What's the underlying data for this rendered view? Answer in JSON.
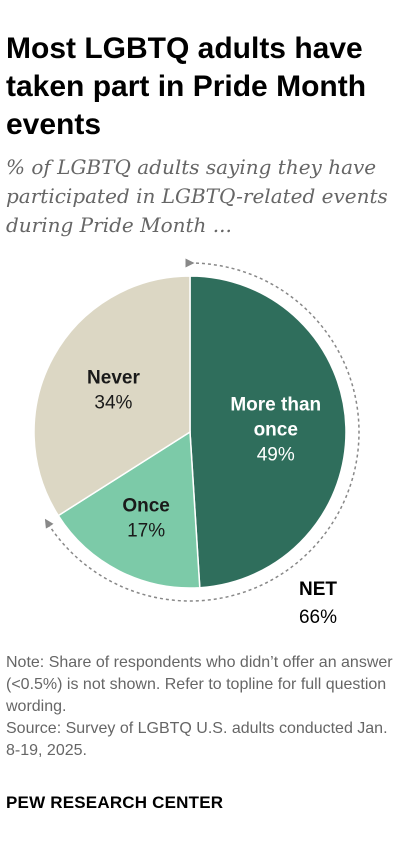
{
  "chart_data": {
    "type": "pie",
    "title": "Most LGBTQ adults have taken part in Pride Month events",
    "subtitle": "% of LGBTQ adults saying they have participated in LGBTQ-related events during Pride Month ...",
    "slices": [
      {
        "label_lines": [
          "More than",
          "once"
        ],
        "value": 49,
        "value_label": "49%",
        "color": "#2f6e5c",
        "label_color": "#ffffff"
      },
      {
        "label_lines": [
          "Once"
        ],
        "value": 17,
        "value_label": "17%",
        "color": "#7ccaa8",
        "label_color": "#1a1a1a"
      },
      {
        "label_lines": [
          "Never"
        ],
        "value": 34,
        "value_label": "34%",
        "color": "#dcd7c4",
        "label_color": "#1a1a1a"
      }
    ],
    "net": {
      "label": "NET",
      "value": 66,
      "value_label": "66%",
      "covers": [
        "More than once",
        "Once"
      ]
    }
  },
  "notes": {
    "note": "Note: Share of respondents who didn’t offer an answer (<0.5%) is not shown. Refer to topline for full question wording.",
    "source": "Source: Survey of LGBTQ U.S. adults conducted Jan. 8-19, 2025."
  },
  "footer": "PEW RESEARCH CENTER"
}
